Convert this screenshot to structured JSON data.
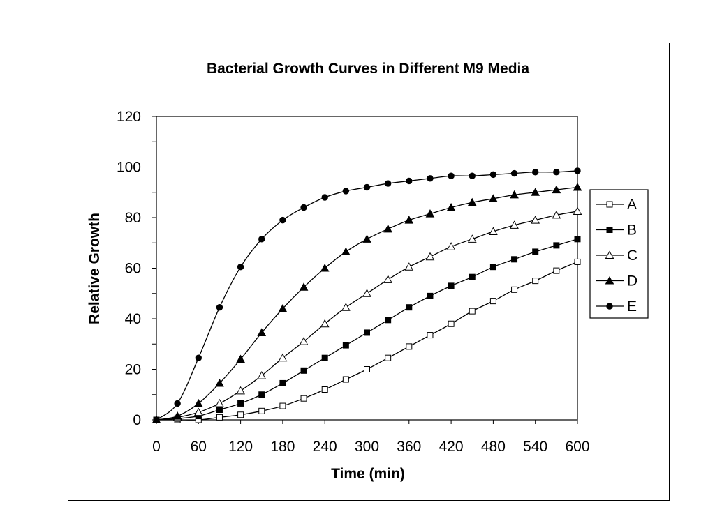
{
  "chart_data": {
    "type": "line",
    "title": "Bacterial Growth Curves in Different M9 Media",
    "xlabel": "Time (min)",
    "ylabel": "Relative Growth",
    "xlim": [
      0,
      600
    ],
    "ylim": [
      0,
      120
    ],
    "x_ticks": [
      0,
      60,
      120,
      180,
      240,
      300,
      360,
      420,
      480,
      540,
      600
    ],
    "y_ticks": [
      0,
      20,
      40,
      60,
      80,
      100,
      120
    ],
    "legend_position": "right",
    "x": [
      0,
      30,
      60,
      90,
      120,
      150,
      180,
      210,
      240,
      270,
      300,
      330,
      360,
      390,
      420,
      450,
      480,
      510,
      540,
      570,
      600
    ],
    "series": [
      {
        "name": "A",
        "marker": "open-square",
        "values": [
          0,
          0,
          0,
          1,
          2,
          3.5,
          5.5,
          8.5,
          12,
          16,
          20,
          24.5,
          29,
          33.5,
          38,
          43,
          47,
          51.5,
          55,
          59,
          62.5
        ]
      },
      {
        "name": "B",
        "marker": "filled-square",
        "values": [
          0,
          0.5,
          1.5,
          4,
          6.5,
          10,
          14.5,
          19.5,
          24.5,
          29.5,
          34.5,
          39.5,
          44.5,
          49,
          53,
          56.5,
          60.5,
          63.5,
          66.5,
          69,
          71.5
        ]
      },
      {
        "name": "C",
        "marker": "open-triangle",
        "values": [
          0,
          1,
          3,
          6.5,
          11.5,
          17.5,
          24.5,
          31,
          38,
          44.5,
          50,
          55.5,
          60.5,
          64.5,
          68.5,
          71.5,
          74.5,
          77,
          79,
          81,
          82.5
        ]
      },
      {
        "name": "D",
        "marker": "filled-triangle",
        "values": [
          0,
          1.5,
          6.5,
          14.5,
          24,
          34.5,
          44,
          52.5,
          60,
          66.5,
          71.5,
          75.5,
          79,
          81.5,
          84,
          86,
          87.5,
          89,
          90,
          91,
          92
        ]
      },
      {
        "name": "E",
        "marker": "filled-circle",
        "values": [
          0,
          6.5,
          24.5,
          44.5,
          60.5,
          71.5,
          79,
          84,
          88,
          90.5,
          92,
          93.5,
          94.5,
          95.5,
          96.5,
          96.5,
          97,
          97.5,
          98,
          98,
          98.5
        ]
      }
    ]
  }
}
